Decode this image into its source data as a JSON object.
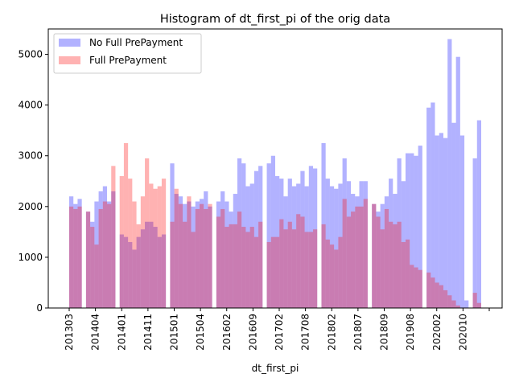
{
  "chart_data": {
    "type": "bar",
    "title": "Histogram of dt_first_pi of the orig data",
    "xlabel": "dt_first_pi",
    "ylabel": "",
    "ylim": [
      0,
      5500
    ],
    "yticks": [
      0,
      1000,
      2000,
      3000,
      4000,
      5000
    ],
    "xtick_labels": [
      "201303",
      "201404",
      "201401",
      "201411",
      "201501",
      "201504",
      "201602",
      "201609",
      "201702",
      "201708",
      "201802",
      "201807",
      "201809",
      "201908",
      "202002",
      "202010"
    ],
    "legend_position": "top-left",
    "colors": {
      "no_full": "#0000ff",
      "full": "#ff0000",
      "alpha": 0.3
    },
    "series": [
      {
        "name": "No Full PrePayment",
        "values": [
          2200,
          2050,
          2150,
          0,
          1900,
          1700,
          2100,
          2300,
          2400,
          2100,
          2300,
          0,
          1450,
          1400,
          1300,
          1150,
          1400,
          1550,
          1700,
          1700,
          1600,
          1400,
          1450,
          0,
          2850,
          2250,
          2200,
          2050,
          2100,
          2000,
          2100,
          2150,
          2300,
          2000,
          0,
          2100,
          2300,
          2100,
          1900,
          2250,
          2950,
          2850,
          2400,
          2450,
          2700,
          2800,
          0,
          2850,
          3000,
          2600,
          2550,
          2200,
          2550,
          2400,
          2450,
          2700,
          2400,
          2800,
          2750,
          0,
          3250,
          2550,
          2400,
          2350,
          2450,
          2950,
          2500,
          2250,
          2200,
          2500,
          2500,
          0,
          2050,
          1900,
          2050,
          2200,
          2550,
          2250,
          2950,
          2500,
          3050,
          3050,
          3000,
          3200,
          0,
          3950,
          4050,
          3400,
          3450,
          3350,
          5300,
          3650,
          4950,
          3400,
          150,
          0,
          2950,
          3700
        ]
      },
      {
        "name": "Full PrePayment",
        "values": [
          2000,
          1950,
          2000,
          0,
          1900,
          1600,
          1250,
          1950,
          2100,
          2050,
          2800,
          0,
          2600,
          3250,
          2550,
          2100,
          1650,
          2200,
          2950,
          2450,
          2350,
          2400,
          2550,
          0,
          1700,
          2350,
          2050,
          1700,
          2200,
          1500,
          1950,
          2050,
          1950,
          2050,
          0,
          1800,
          1950,
          1600,
          1650,
          1650,
          1900,
          1600,
          1500,
          1600,
          1400,
          1700,
          0,
          1300,
          1400,
          1400,
          1750,
          1550,
          1700,
          1550,
          1850,
          1800,
          1500,
          1500,
          1550,
          0,
          1650,
          1350,
          1250,
          1150,
          1400,
          2150,
          1800,
          1900,
          2000,
          2000,
          2150,
          0,
          2050,
          1800,
          1550,
          1950,
          1700,
          1650,
          1700,
          1300,
          1350,
          850,
          800,
          750,
          0,
          700,
          600,
          500,
          450,
          350,
          250,
          150,
          50,
          0,
          0,
          0,
          300,
          100
        ]
      }
    ]
  }
}
